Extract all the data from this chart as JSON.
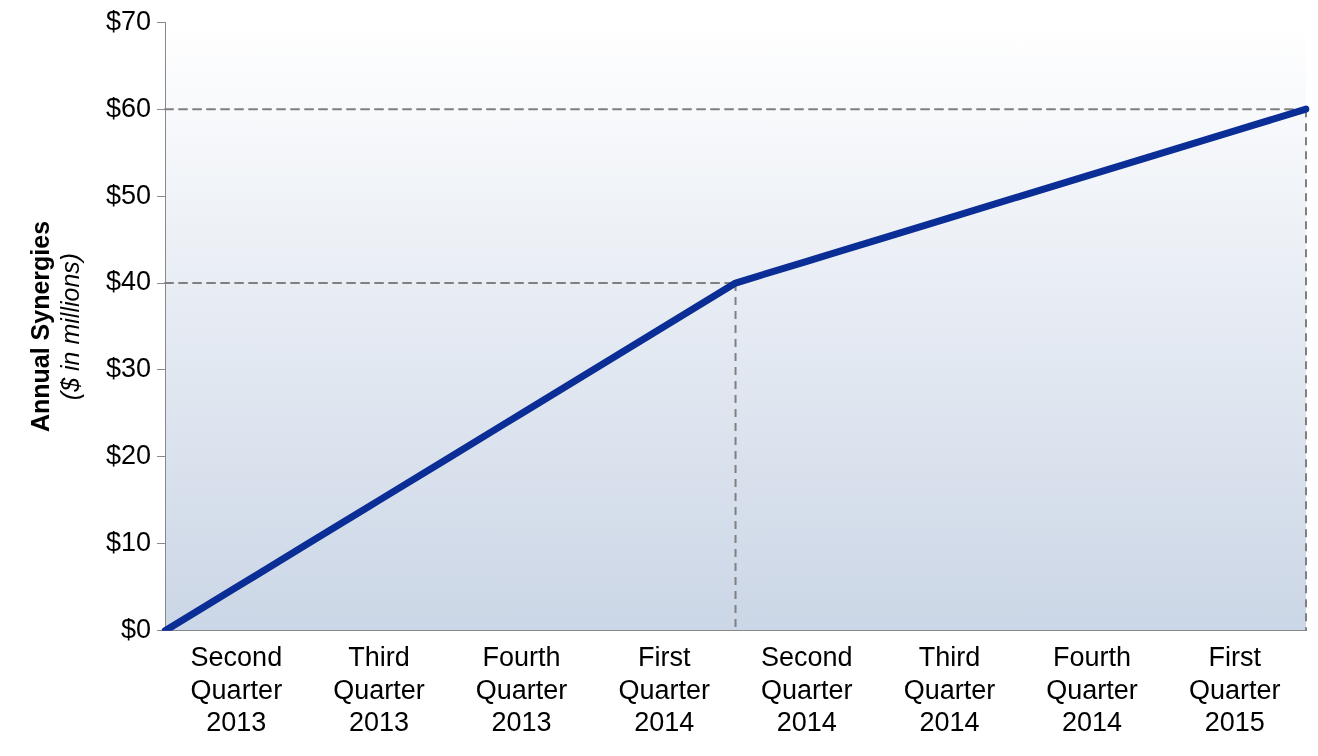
{
  "chart_data": {
    "type": "line",
    "ylabel": "Annual Synergies\n($ in millions)",
    "categories": [
      null,
      "Second Quarter 2013",
      null,
      "Third Quarter 2013",
      null,
      "Fourth Quarter 2013",
      null,
      "First Quarter 2014",
      null,
      "Second Quarter 2014",
      null,
      "Third Quarter 2014",
      null,
      "Fourth Quarter 2014",
      null,
      "First Quarter 2015",
      null
    ],
    "ylim": [
      0,
      70
    ],
    "yticks": [
      {
        "value": 0,
        "label": "$0"
      },
      {
        "value": 10,
        "label": "$10"
      },
      {
        "value": 20,
        "label": "$20"
      },
      {
        "value": 30,
        "label": "$30"
      },
      {
        "value": 40,
        "label": "$40"
      },
      {
        "value": 50,
        "label": "$50"
      },
      {
        "value": 60,
        "label": "$60"
      },
      {
        "value": 70,
        "label": "$70"
      }
    ],
    "grid": false,
    "legend": false,
    "marker": "none",
    "series": [
      {
        "color": "#808080",
        "line_style": "dashed",
        "values": [
          40,
          40,
          40,
          40,
          40,
          40,
          40,
          40,
          40,
          null,
          null,
          null,
          null,
          null,
          null,
          null,
          null
        ]
      },
      {
        "color": "#808080",
        "line_style": "dashed",
        "values": [
          60,
          60,
          60,
          60,
          60,
          60,
          60,
          60,
          60,
          60,
          60,
          60,
          60,
          60,
          60,
          60,
          60
        ]
      },
      {
        "color": "#0a2d96",
        "line_style": "solid",
        "values": [
          0,
          5,
          10,
          15,
          20,
          25,
          30,
          35,
          40,
          42.5,
          45,
          47.5,
          50,
          52.5,
          55,
          57.5,
          60
        ]
      }
    ]
  }
}
